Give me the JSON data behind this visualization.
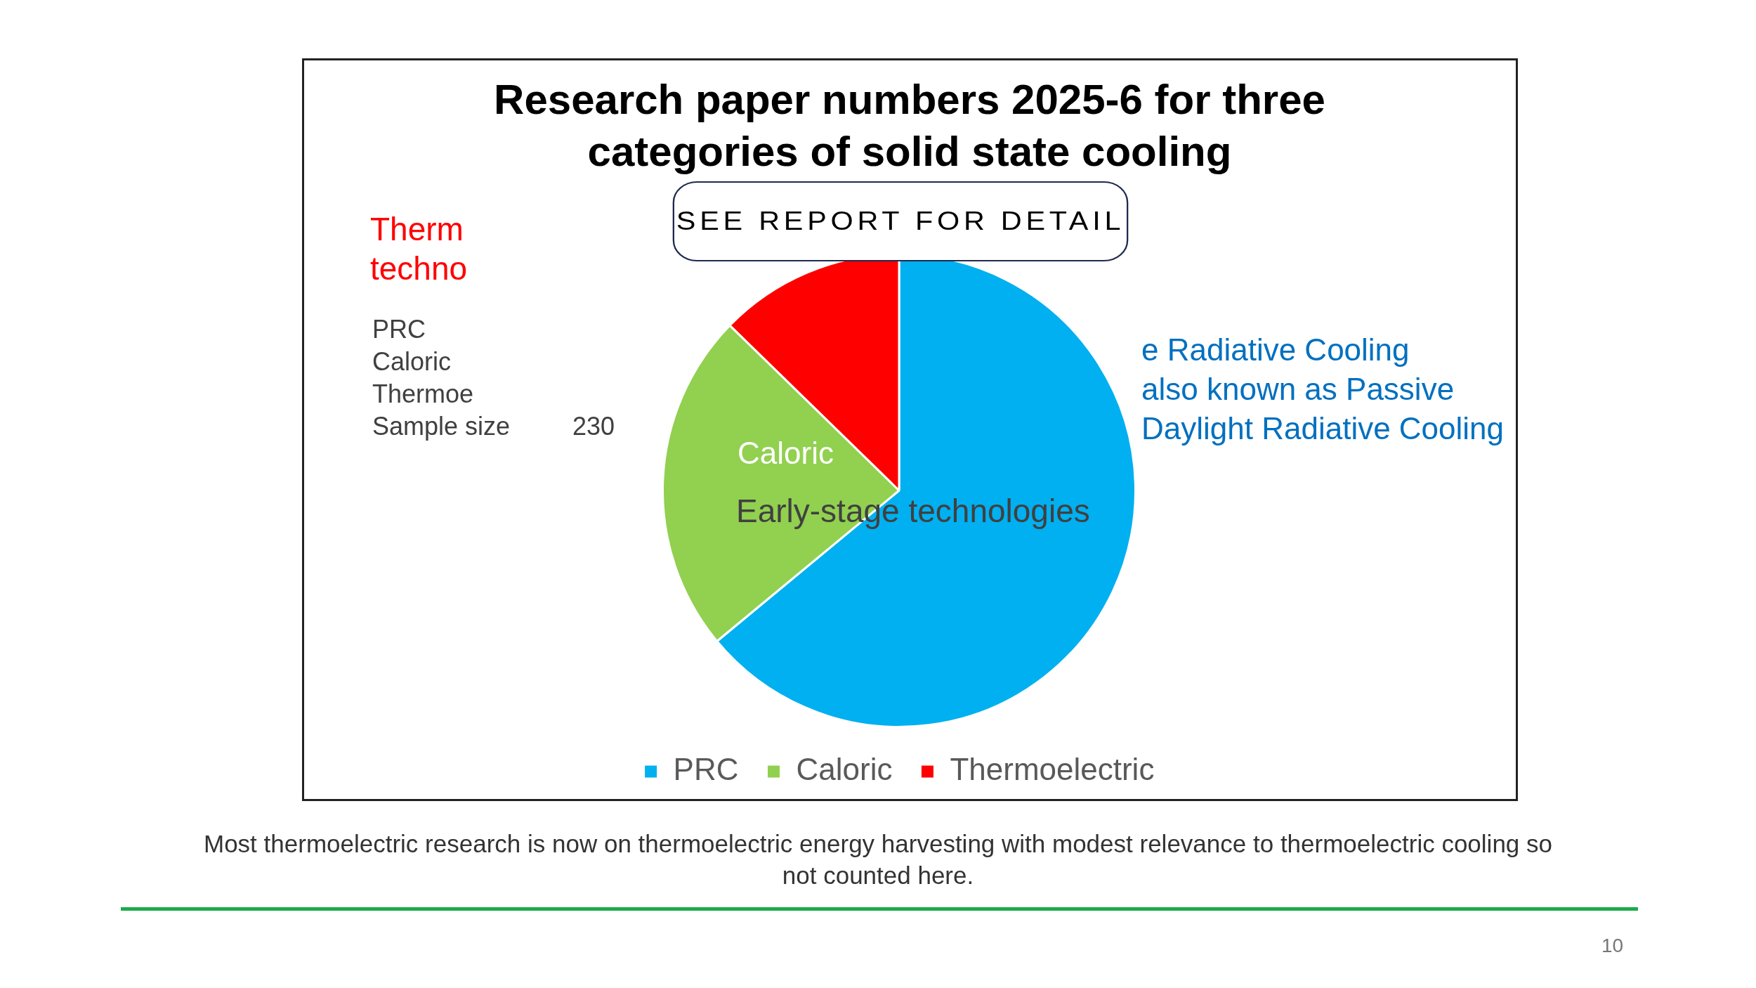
{
  "chart_data": {
    "type": "pie",
    "title": "Research paper numbers 2025-6 for three categories of solid state cooling",
    "categories": [
      "PRC",
      "Caloric",
      "Thermoelectric"
    ],
    "values": [
      64,
      23.3,
      12.7
    ],
    "colors": [
      "#00b0f0",
      "#92d050",
      "#ff0000"
    ],
    "legend": "bottom",
    "annotations": [
      "Therm\ntechno",
      "PRC",
      "Caloric",
      "Thermoe",
      "Sample size",
      "230",
      "SEE REPORT FOR DETAIL",
      "e Radiative Cooling\nalso known as Passive\nDaylight Radiative Cooling",
      "Caloric",
      "Early-stage technologies",
      "Most thermoelectric research is now on thermoelectric energy harvesting with modest relevance to thermoelectric cooling so not counted here.",
      "10"
    ]
  }
}
